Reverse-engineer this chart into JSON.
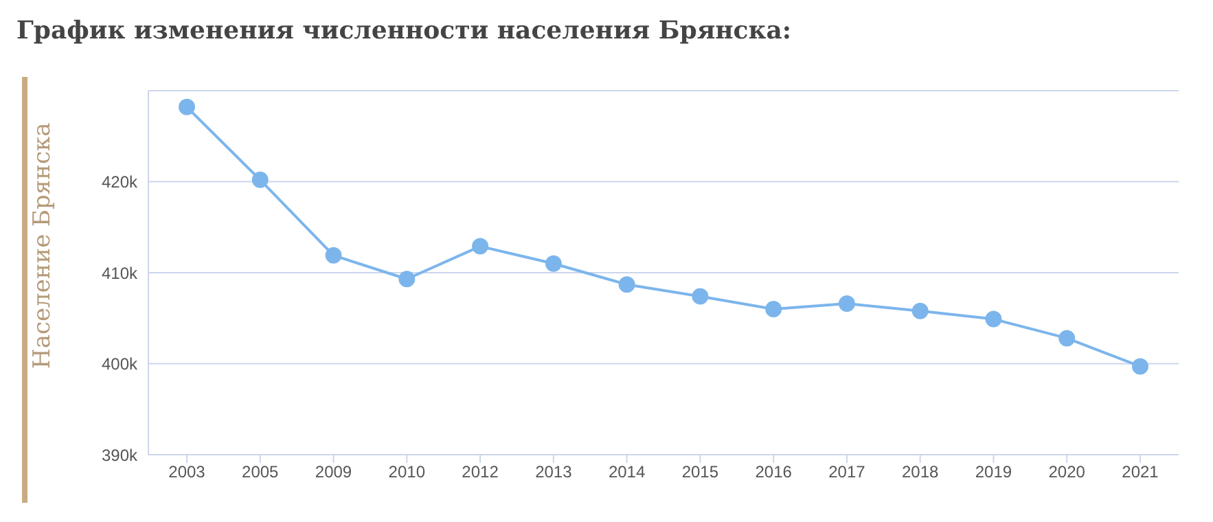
{
  "chart_data": {
    "type": "line",
    "title": "График изменения численности населения Брянска:",
    "ylabel": "Население Брянска",
    "categories": [
      "2003",
      "2005",
      "2009",
      "2010",
      "2012",
      "2013",
      "2014",
      "2015",
      "2016",
      "2017",
      "2018",
      "2019",
      "2020",
      "2021"
    ],
    "series": [
      {
        "color": "#7cb5ec",
        "values": [
          428200,
          420200,
          411900,
          409300,
          412900,
          411000,
          408700,
          407400,
          406000,
          406600,
          405800,
          404900,
          402800,
          399700
        ]
      }
    ],
    "ylim": [
      390000,
      430000
    ],
    "yticks": [
      {
        "value": 390000,
        "label": "390k"
      },
      {
        "value": 400000,
        "label": "400k"
      },
      {
        "value": 410000,
        "label": "410k"
      },
      {
        "value": 420000,
        "label": "420k"
      }
    ],
    "grid": "y",
    "marker": "circle",
    "line_style": "solid",
    "legend": false
  }
}
